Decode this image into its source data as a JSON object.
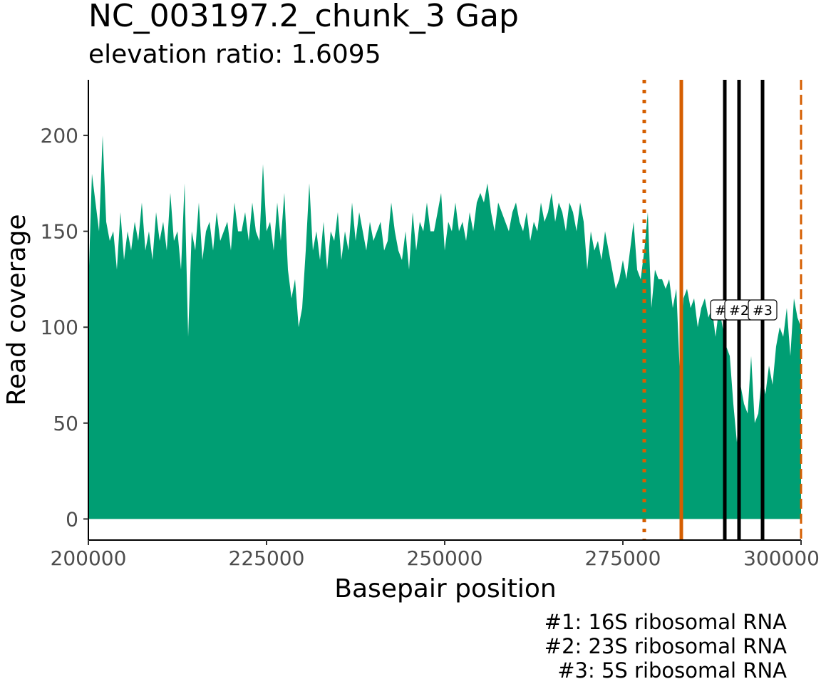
{
  "chart_data": {
    "type": "area",
    "title": "NC_003197.2_chunk_3 Gap",
    "subtitle": "elevation ratio: 1.6095",
    "xlabel": "Basepair position",
    "ylabel": "Read coverage",
    "xlim": [
      200000,
      300000
    ],
    "ylim": [
      -11,
      229
    ],
    "x_ticks": [
      200000,
      225000,
      250000,
      275000,
      300000
    ],
    "x_tick_labels": [
      "200000",
      "225000",
      "250000",
      "275000",
      "300000"
    ],
    "y_ticks": [
      0,
      50,
      100,
      150,
      200
    ],
    "y_tick_labels": [
      "0",
      "50",
      "100",
      "150",
      "200"
    ],
    "grid": false,
    "legend": "none",
    "series": [
      {
        "color": "#009E73",
        "x": [
          200000,
          200500,
          201000,
          201500,
          202000,
          202500,
          203000,
          203500,
          204000,
          204500,
          205000,
          205500,
          206000,
          206500,
          207000,
          207500,
          208000,
          208500,
          209000,
          209500,
          210000,
          210500,
          211000,
          211500,
          212000,
          212500,
          213000,
          213500,
          214000,
          214500,
          215000,
          215500,
          216000,
          216500,
          217000,
          217500,
          218000,
          218500,
          219000,
          219500,
          220000,
          220500,
          221000,
          221500,
          222000,
          222500,
          223000,
          223500,
          224000,
          224500,
          225000,
          225500,
          226000,
          226500,
          227000,
          227500,
          228000,
          228500,
          229000,
          229500,
          230000,
          230500,
          231000,
          231500,
          232000,
          232500,
          233000,
          233500,
          234000,
          234500,
          235000,
          235500,
          236000,
          236500,
          237000,
          237500,
          238000,
          238500,
          239000,
          239500,
          240000,
          240500,
          241000,
          241500,
          242000,
          242500,
          243000,
          243500,
          244000,
          244500,
          245000,
          245500,
          246000,
          246500,
          247000,
          247500,
          248000,
          248500,
          249000,
          249500,
          250000,
          250500,
          251000,
          251500,
          252000,
          252500,
          253000,
          253500,
          254000,
          254500,
          255000,
          255500,
          256000,
          256500,
          257000,
          257500,
          258000,
          258500,
          259000,
          259500,
          260000,
          260500,
          261000,
          261500,
          262000,
          262500,
          263000,
          263500,
          264000,
          264500,
          265000,
          265500,
          266000,
          266500,
          267000,
          267500,
          268000,
          268500,
          269000,
          269500,
          270000,
          270500,
          271000,
          271500,
          272000,
          272500,
          273000,
          273500,
          274000,
          274500,
          275000,
          275500,
          276000,
          276500,
          277000,
          277500,
          278000,
          278500,
          279000,
          279500,
          280000,
          280500,
          281000,
          281500,
          282000,
          282500,
          283000,
          283500,
          284000,
          284500,
          285000,
          285500,
          286000,
          286500,
          287000,
          287500,
          288000,
          288500,
          289000,
          289500,
          290000,
          290500,
          291000,
          291500,
          292000,
          292500,
          293000,
          293500,
          294000,
          294500,
          295000,
          295500,
          296000,
          296500,
          297000,
          297500,
          298000,
          298500,
          299000,
          299500,
          300000
        ],
        "values": [
          120,
          180,
          165,
          150,
          200,
          155,
          145,
          150,
          130,
          160,
          135,
          150,
          140,
          155,
          145,
          165,
          140,
          150,
          135,
          160,
          145,
          155,
          140,
          170,
          145,
          150,
          130,
          175,
          95,
          150,
          140,
          165,
          135,
          150,
          155,
          140,
          160,
          145,
          150,
          155,
          140,
          165,
          150,
          150,
          160,
          145,
          165,
          150,
          145,
          185,
          150,
          155,
          140,
          165,
          145,
          170,
          130,
          115,
          125,
          100,
          110,
          140,
          175,
          140,
          150,
          135,
          155,
          130,
          150,
          145,
          160,
          135,
          150,
          140,
          165,
          145,
          160,
          150,
          140,
          155,
          145,
          150,
          155,
          140,
          145,
          165,
          150,
          140,
          135,
          150,
          130,
          160,
          140,
          155,
          150,
          165,
          150,
          150,
          160,
          170,
          140,
          155,
          150,
          165,
          150,
          155,
          145,
          160,
          150,
          165,
          170,
          165,
          175,
          160,
          150,
          165,
          160,
          155,
          150,
          160,
          165,
          155,
          150,
          160,
          145,
          155,
          150,
          165,
          155,
          160,
          170,
          155,
          165,
          160,
          150,
          165,
          160,
          150,
          165,
          155,
          130,
          150,
          140,
          145,
          135,
          150,
          140,
          130,
          120,
          125,
          135,
          125,
          140,
          155,
          130,
          125,
          140,
          160,
          110,
          130,
          125,
          125,
          120,
          125,
          110,
          120,
          75,
          115,
          120,
          110,
          115,
          100,
          110,
          115,
          105,
          110,
          95,
          110,
          100,
          90,
          85,
          60,
          40,
          70,
          60,
          55,
          85,
          50,
          55,
          75,
          65,
          80,
          70,
          90,
          100,
          95,
          110,
          85,
          115,
          105,
          100
        ]
      }
    ],
    "vertical_lines": [
      {
        "x": 278000,
        "color": "#D55E00",
        "style": "dotted"
      },
      {
        "x": 283200,
        "color": "#D55E00",
        "style": "solid"
      },
      {
        "x": 300000,
        "color": "#D55E00",
        "style": "dashed"
      },
      {
        "x": 289300,
        "color": "#000000",
        "style": "solid"
      },
      {
        "x": 291300,
        "color": "#000000",
        "style": "solid"
      },
      {
        "x": 294600,
        "color": "#000000",
        "style": "solid"
      }
    ],
    "annotations": [
      {
        "label": "#1",
        "x": 289300,
        "y": 109
      },
      {
        "label": "#2",
        "x": 291300,
        "y": 109
      },
      {
        "label": "#3",
        "x": 294600,
        "y": 109
      }
    ],
    "caption_lines": [
      "#1: 16S ribosomal RNA",
      "#2: 23S ribosomal RNA",
      "#3: 5S ribosomal RNA"
    ]
  }
}
